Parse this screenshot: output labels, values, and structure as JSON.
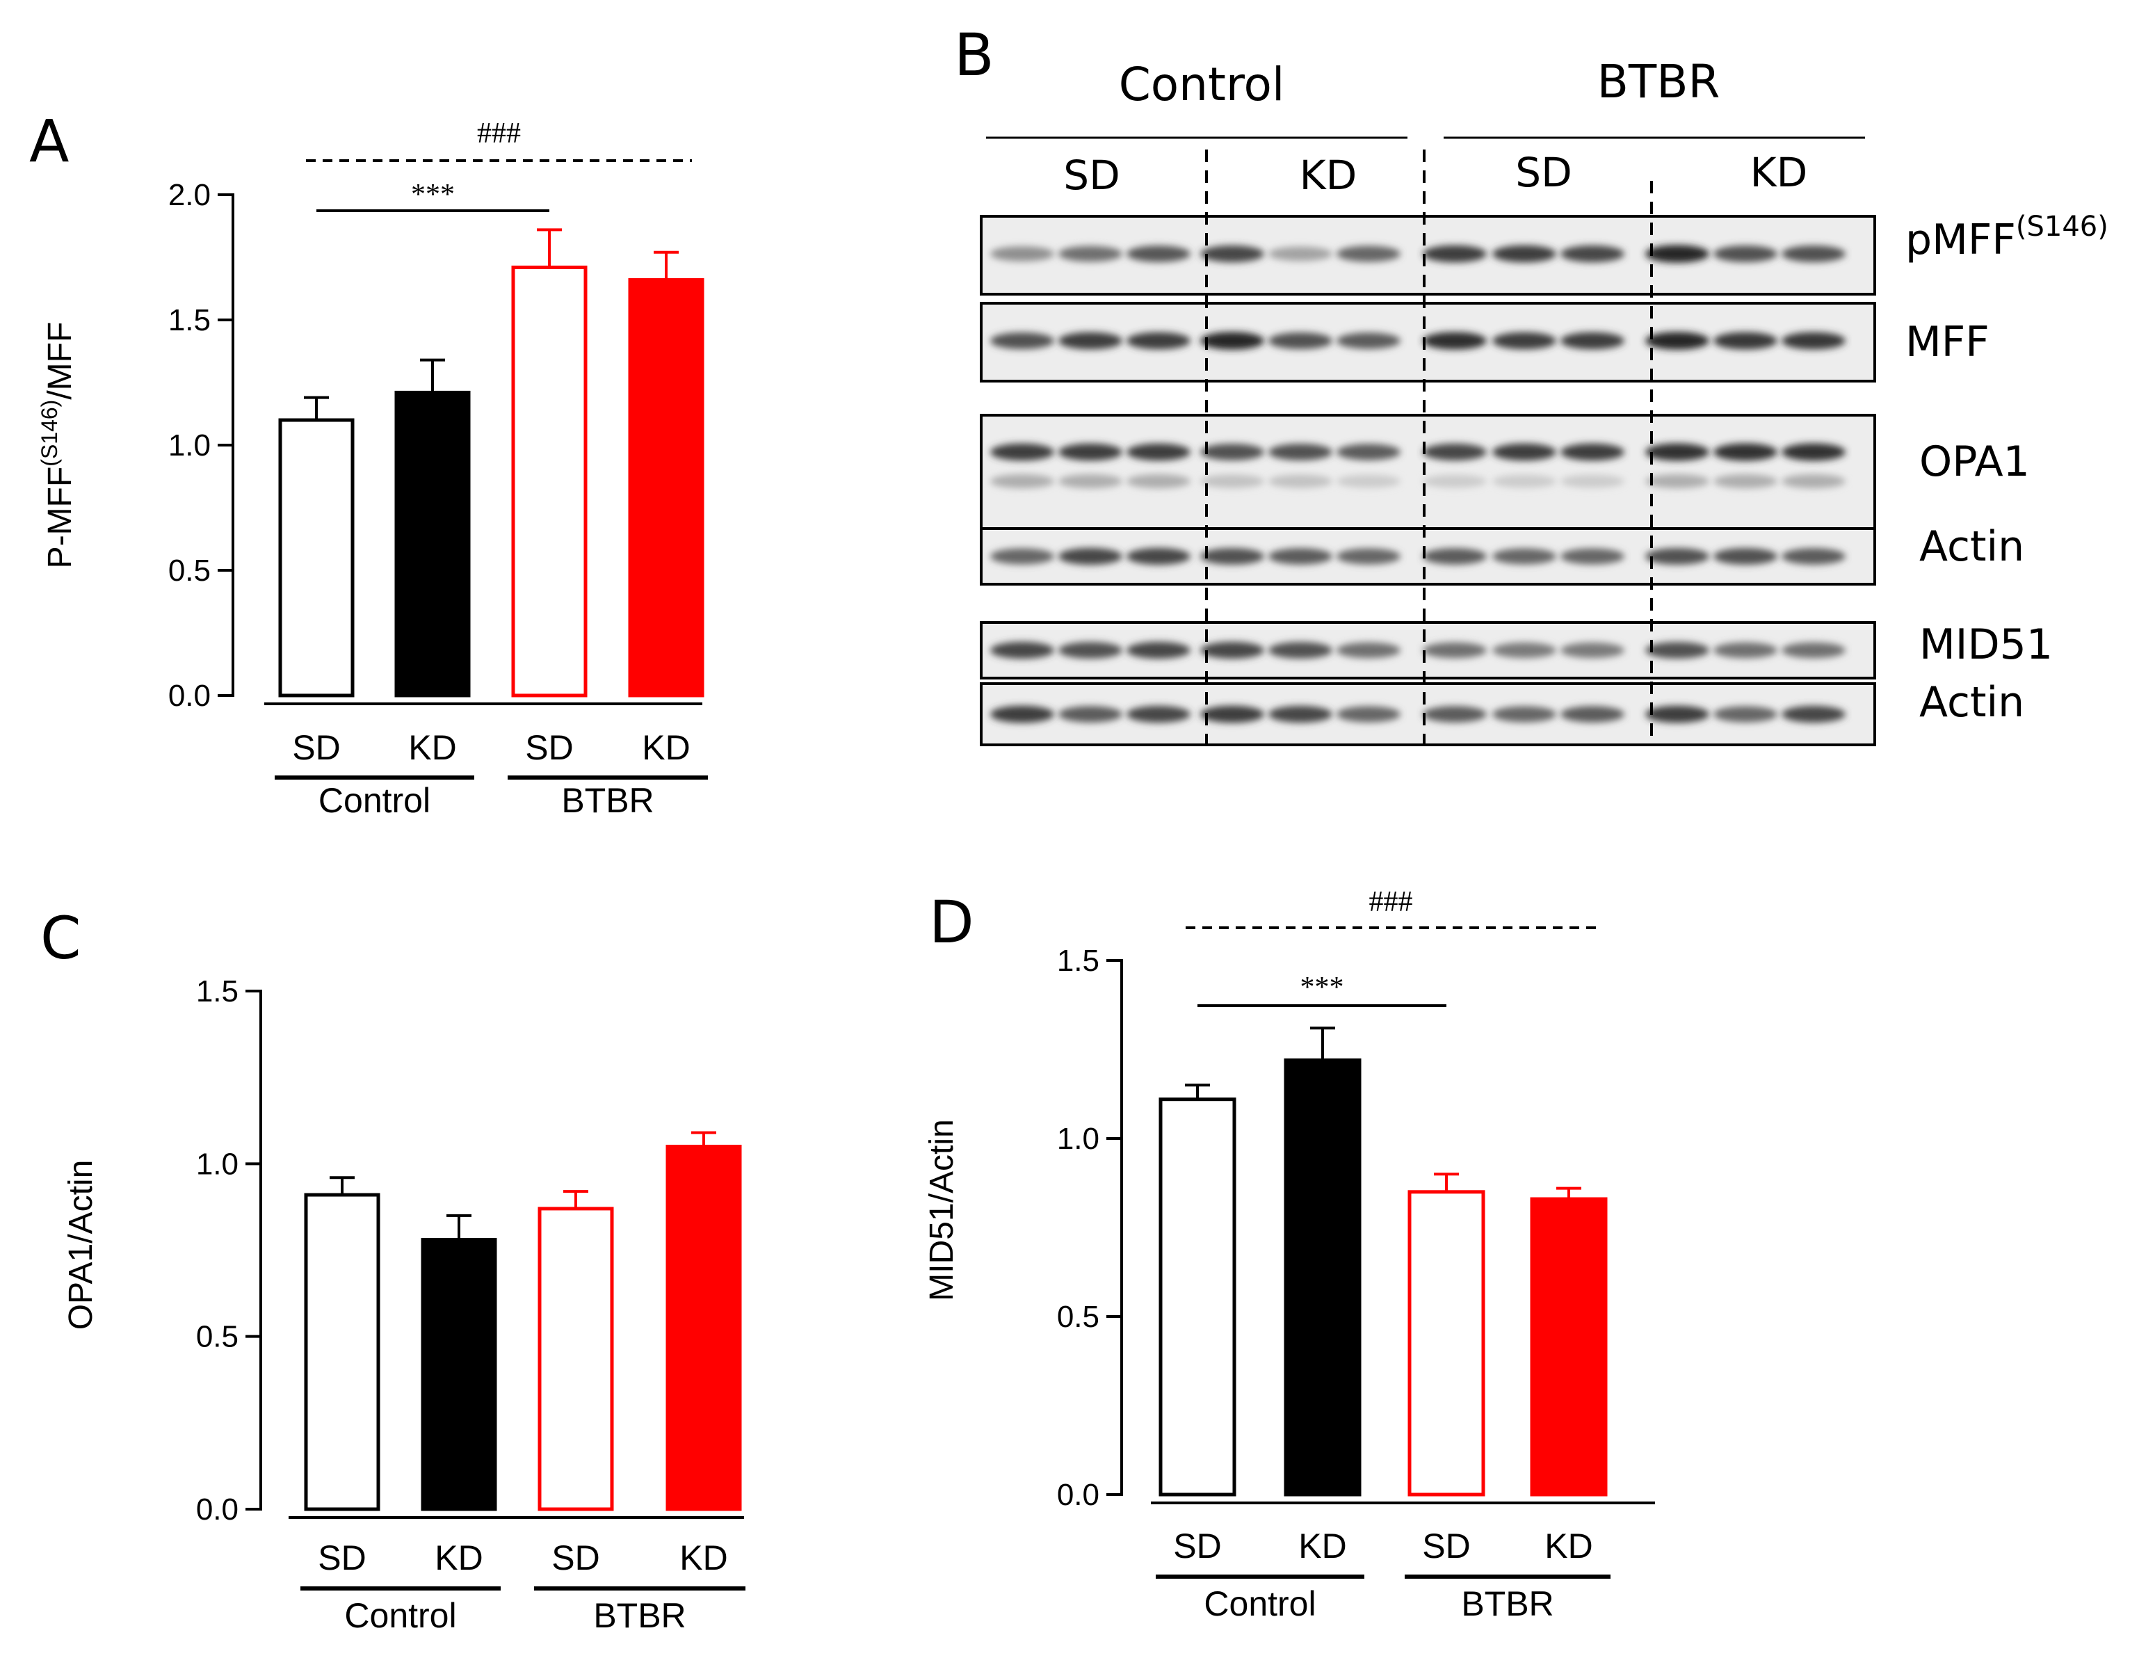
{
  "panels": {
    "A": "A",
    "B": "B",
    "C": "C",
    "D": "D"
  },
  "colors": {
    "control": "#000000",
    "btbr": "#ff0000"
  },
  "chart_data": [
    {
      "id": "A",
      "type": "bar",
      "categories": [
        "SD",
        "KD",
        "SD",
        "KD"
      ],
      "groups": [
        "Control",
        "BTBR"
      ],
      "values": [
        1.1,
        1.21,
        1.71,
        1.66
      ],
      "errors": [
        0.09,
        0.13,
        0.15,
        0.11
      ],
      "styles": [
        "open-black",
        "filled-black",
        "open-red",
        "filled-red"
      ],
      "ylabel": "P-MFF(S146)/MFF",
      "ylabel_main": "P-MFF",
      "ylabel_sup": "(S146)",
      "ylabel_tail": "/MFF",
      "ylim": [
        0,
        2.0
      ],
      "yticks": [
        "0.0",
        "0.5",
        "1.0",
        "1.5",
        "2.0"
      ],
      "sig_star": "***",
      "sig_hash": "###"
    },
    {
      "id": "C",
      "type": "bar",
      "categories": [
        "SD",
        "KD",
        "SD",
        "KD"
      ],
      "groups": [
        "Control",
        "BTBR"
      ],
      "values": [
        0.91,
        0.78,
        0.87,
        1.05
      ],
      "errors": [
        0.05,
        0.07,
        0.05,
        0.04
      ],
      "styles": [
        "open-black",
        "filled-black",
        "open-red",
        "filled-red"
      ],
      "ylabel": "OPA1/Actin",
      "ylim": [
        0,
        1.5
      ],
      "yticks": [
        "0.0",
        "0.5",
        "1.0",
        "1.5"
      ]
    },
    {
      "id": "D",
      "type": "bar",
      "categories": [
        "SD",
        "KD",
        "SD",
        "KD"
      ],
      "groups": [
        "Control",
        "BTBR"
      ],
      "values": [
        1.11,
        1.22,
        0.85,
        0.83
      ],
      "errors": [
        0.04,
        0.09,
        0.05,
        0.03
      ],
      "styles": [
        "open-black",
        "filled-black",
        "open-red",
        "filled-red"
      ],
      "ylabel": "MID51/Actin",
      "ylim": [
        0,
        1.5
      ],
      "yticks": [
        "0.0",
        "0.5",
        "1.0",
        "1.5"
      ],
      "sig_star": "***",
      "sig_hash": "###"
    }
  ],
  "blot": {
    "groups": [
      "Control",
      "BTBR"
    ],
    "subgroups": [
      "SD",
      "KD",
      "SD",
      "KD"
    ],
    "labels": {
      "pmff_main": "pMFF",
      "pmff_sup": "(S146)",
      "mff": "MFF",
      "opa1": "OPA1",
      "actin1": "Actin",
      "mid51": "MID51",
      "actin2": "Actin"
    }
  }
}
